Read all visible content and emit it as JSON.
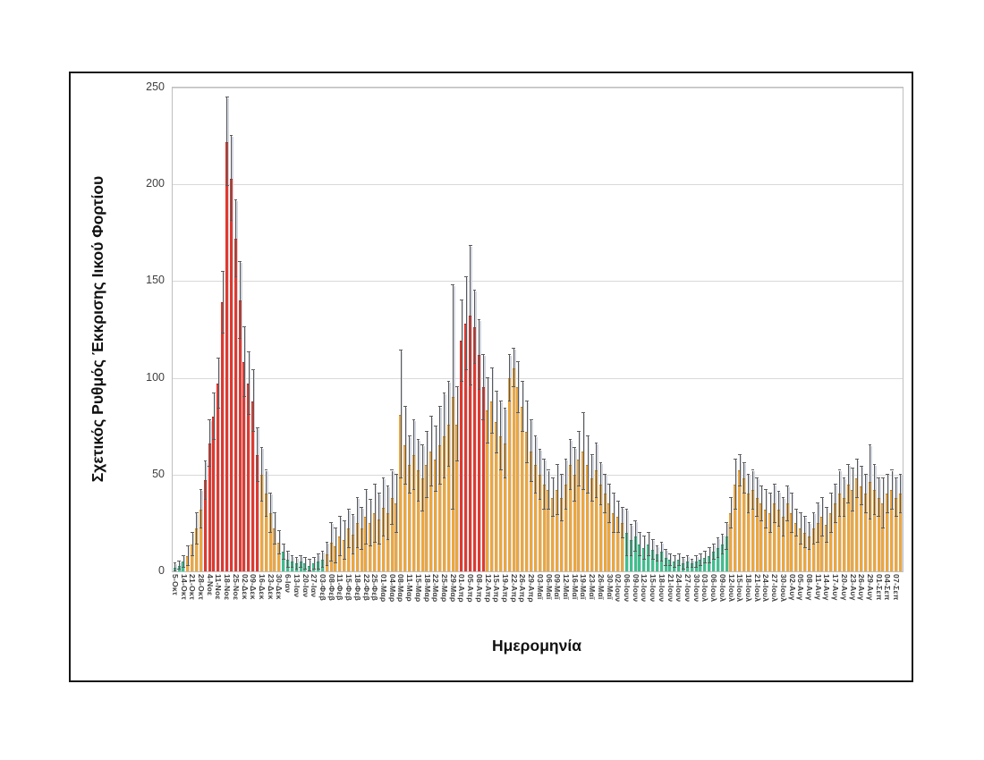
{
  "chart_data": {
    "type": "bar",
    "title": "",
    "xlabel": "Ημερομηνία",
    "ylabel": "Σχετικός Ρυθμός Έκκρισης Ιικού Φορτίου",
    "ylim": [
      0,
      250
    ],
    "yticks": [
      0,
      50,
      100,
      150,
      200,
      250
    ],
    "grid": "horizontal",
    "legend": "none",
    "bar_palette": {
      "g": "#3fbf8c",
      "o": "#eda63c",
      "r": "#e0392f"
    },
    "bar_border_palette": {
      "g": "#2d9c6e",
      "o": "#c2851d",
      "r": "#aa241d"
    },
    "error_bar_color": "#595959",
    "x_tick_labels": [
      "5-Οκτ",
      "14-Οκτ",
      "21-Οκτ",
      "28-Οκτ",
      "4-Νοε",
      "11-Νοε",
      "18-Νοε",
      "25-Νοε",
      "02-Δεκ",
      "09-Δεκ",
      "16-Δεκ",
      "23-Δεκ",
      "30-Δεκ",
      "6-Ιαν",
      "13-Ιαν",
      "20-Ιαν",
      "27-Ιαν",
      "03-Φεβ",
      "08-Φεβ",
      "11-Φεβ",
      "15-Φεβ",
      "18-Φεβ",
      "22-Φεβ",
      "25-Φεβ",
      "01-Μαρ",
      "04-Μαρ",
      "08-Μαρ",
      "11-Μαρ",
      "15-Μαρ",
      "18-Μαρ",
      "22-Μαρ",
      "25-Μαρ",
      "29-Μαρ",
      "01-Απρ",
      "05-Απρ",
      "08-Απρ",
      "12-Απρ",
      "15-Απρ",
      "19-Απρ",
      "22-Απρ",
      "26-Απρ",
      "29-Απρ",
      "03-Μαϊ",
      "06-Μαϊ",
      "09-Μαϊ",
      "12-Μαϊ",
      "16-Μαϊ",
      "19-Μαϊ",
      "23-Μαϊ",
      "26-Μαϊ",
      "30-Μαϊ",
      "02-Ιουν",
      "06-Ιουν",
      "09-Ιουν",
      "12-Ιουν",
      "15-Ιουν",
      "18-Ιουν",
      "21-Ιουν",
      "24-Ιουν",
      "27-Ιουν",
      "30-Ιουν",
      "03-Ιουλ",
      "06-Ιουλ",
      "09-Ιουλ",
      "12-Ιουλ",
      "15-Ιουλ",
      "18-Ιουλ",
      "21-Ιουλ",
      "24-Ιουλ",
      "27-Ιουλ",
      "30-Ιουλ",
      "02-Αυγ",
      "05-Αυγ",
      "08-Αυγ",
      "11-Αυγ",
      "14-Αυγ",
      "17-Αυγ",
      "20-Αυγ",
      "23-Αυγ",
      "26-Αυγ",
      "29-Αυγ",
      "01-Σεπ",
      "04-Σεπ",
      "07-Σεπ"
    ],
    "bars_per_label": 2,
    "bars": [
      [
        2,
        4,
        "g"
      ],
      [
        3,
        5,
        "g"
      ],
      [
        5,
        8,
        "g"
      ],
      [
        8,
        13,
        "o"
      ],
      [
        14,
        20,
        "o"
      ],
      [
        22,
        30,
        "o"
      ],
      [
        32,
        42,
        "o"
      ],
      [
        47,
        57,
        "r"
      ],
      [
        66,
        78,
        "r"
      ],
      [
        80,
        92,
        "r"
      ],
      [
        97,
        110,
        "r"
      ],
      [
        139,
        155,
        "r"
      ],
      [
        222,
        245,
        "r"
      ],
      [
        203,
        225,
        "r"
      ],
      [
        172,
        192,
        "r"
      ],
      [
        140,
        160,
        "r"
      ],
      [
        108,
        126,
        "r"
      ],
      [
        97,
        113,
        "r"
      ],
      [
        88,
        104,
        "r"
      ],
      [
        60,
        74,
        "r"
      ],
      [
        50,
        64,
        "o"
      ],
      [
        40,
        52,
        "o"
      ],
      [
        30,
        40,
        "o"
      ],
      [
        22,
        30,
        "o"
      ],
      [
        15,
        21,
        "o"
      ],
      [
        10,
        14,
        "g"
      ],
      [
        6,
        10,
        "g"
      ],
      [
        5,
        8,
        "g"
      ],
      [
        4,
        7,
        "g"
      ],
      [
        5,
        8,
        "g"
      ],
      [
        4,
        7,
        "g"
      ],
      [
        3,
        6,
        "g"
      ],
      [
        4,
        7,
        "g"
      ],
      [
        5,
        9,
        "g"
      ],
      [
        6,
        10,
        "g"
      ],
      [
        9,
        15,
        "o"
      ],
      [
        15,
        25,
        "o"
      ],
      [
        13,
        22,
        "o"
      ],
      [
        18,
        28,
        "o"
      ],
      [
        16,
        26,
        "o"
      ],
      [
        22,
        32,
        "o"
      ],
      [
        19,
        29,
        "o"
      ],
      [
        25,
        38,
        "o"
      ],
      [
        22,
        33,
        "o"
      ],
      [
        28,
        42,
        "o"
      ],
      [
        25,
        37,
        "o"
      ],
      [
        30,
        45,
        "o"
      ],
      [
        27,
        40,
        "o"
      ],
      [
        33,
        48,
        "o"
      ],
      [
        30,
        44,
        "o"
      ],
      [
        38,
        52,
        "o"
      ],
      [
        35,
        50,
        "o"
      ],
      [
        81,
        114,
        "o"
      ],
      [
        65,
        85,
        "o"
      ],
      [
        55,
        70,
        "o"
      ],
      [
        60,
        78,
        "o"
      ],
      [
        52,
        68,
        "o"
      ],
      [
        48,
        65,
        "o"
      ],
      [
        55,
        72,
        "o"
      ],
      [
        62,
        80,
        "o"
      ],
      [
        58,
        75,
        "o"
      ],
      [
        65,
        85,
        "o"
      ],
      [
        70,
        92,
        "o"
      ],
      [
        76,
        98,
        "o"
      ],
      [
        90,
        148,
        "o"
      ],
      [
        76,
        95,
        "o"
      ],
      [
        119,
        140,
        "r"
      ],
      [
        128,
        152,
        "r"
      ],
      [
        132,
        168,
        "r"
      ],
      [
        126,
        145,
        "r"
      ],
      [
        112,
        130,
        "r"
      ],
      [
        95,
        112,
        "r"
      ],
      [
        83,
        100,
        "o"
      ],
      [
        88,
        105,
        "o"
      ],
      [
        77,
        93,
        "o"
      ],
      [
        70,
        88,
        "o"
      ],
      [
        66,
        84,
        "o"
      ],
      [
        100,
        112,
        "o"
      ],
      [
        105,
        115,
        "o"
      ],
      [
        95,
        108,
        "o"
      ],
      [
        85,
        98,
        "o"
      ],
      [
        72,
        88,
        "o"
      ],
      [
        62,
        78,
        "o"
      ],
      [
        55,
        70,
        "o"
      ],
      [
        50,
        63,
        "o"
      ],
      [
        45,
        58,
        "o"
      ],
      [
        42,
        52,
        "o"
      ],
      [
        38,
        48,
        "o"
      ],
      [
        42,
        55,
        "o"
      ],
      [
        38,
        50,
        "o"
      ],
      [
        45,
        58,
        "o"
      ],
      [
        55,
        68,
        "o"
      ],
      [
        50,
        64,
        "o"
      ],
      [
        58,
        72,
        "o"
      ],
      [
        62,
        82,
        "o"
      ],
      [
        55,
        70,
        "o"
      ],
      [
        48,
        60,
        "o"
      ],
      [
        52,
        66,
        "o"
      ],
      [
        45,
        56,
        "o"
      ],
      [
        40,
        50,
        "o"
      ],
      [
        35,
        45,
        "o"
      ],
      [
        30,
        40,
        "o"
      ],
      [
        28,
        36,
        "o"
      ],
      [
        25,
        33,
        "o"
      ],
      [
        20,
        32,
        "g"
      ],
      [
        16,
        24,
        "g"
      ],
      [
        18,
        26,
        "g"
      ],
      [
        14,
        20,
        "g"
      ],
      [
        12,
        18,
        "g"
      ],
      [
        14,
        20,
        "g"
      ],
      [
        11,
        16,
        "g"
      ],
      [
        9,
        13,
        "g"
      ],
      [
        10,
        15,
        "g"
      ],
      [
        7,
        11,
        "g"
      ],
      [
        6,
        9,
        "g"
      ],
      [
        5,
        8,
        "g"
      ],
      [
        6,
        9,
        "g"
      ],
      [
        4,
        7,
        "g"
      ],
      [
        5,
        8,
        "g"
      ],
      [
        4,
        6,
        "g"
      ],
      [
        5,
        8,
        "g"
      ],
      [
        6,
        9,
        "g"
      ],
      [
        7,
        10,
        "g"
      ],
      [
        8,
        12,
        "g"
      ],
      [
        10,
        14,
        "g"
      ],
      [
        12,
        17,
        "g"
      ],
      [
        14,
        19,
        "g"
      ],
      [
        18,
        25,
        "g"
      ],
      [
        30,
        38,
        "o"
      ],
      [
        45,
        58,
        "o"
      ],
      [
        52,
        60,
        "o"
      ],
      [
        48,
        56,
        "o"
      ],
      [
        40,
        50,
        "o"
      ],
      [
        42,
        52,
        "o"
      ],
      [
        38,
        48,
        "o"
      ],
      [
        35,
        44,
        "o"
      ],
      [
        32,
        42,
        "o"
      ],
      [
        30,
        40,
        "o"
      ],
      [
        35,
        45,
        "o"
      ],
      [
        32,
        41,
        "o"
      ],
      [
        28,
        38,
        "o"
      ],
      [
        35,
        44,
        "o"
      ],
      [
        30,
        40,
        "o"
      ],
      [
        25,
        32,
        "o"
      ],
      [
        22,
        30,
        "o"
      ],
      [
        20,
        28,
        "o"
      ],
      [
        18,
        25,
        "o"
      ],
      [
        22,
        30,
        "o"
      ],
      [
        25,
        35,
        "o"
      ],
      [
        28,
        38,
        "o"
      ],
      [
        24,
        33,
        "o"
      ],
      [
        30,
        40,
        "o"
      ],
      [
        35,
        45,
        "o"
      ],
      [
        40,
        52,
        "o"
      ],
      [
        38,
        48,
        "o"
      ],
      [
        45,
        55,
        "o"
      ],
      [
        42,
        53,
        "o"
      ],
      [
        48,
        58,
        "o"
      ],
      [
        44,
        54,
        "o"
      ],
      [
        40,
        50,
        "o"
      ],
      [
        46,
        65,
        "o"
      ],
      [
        42,
        55,
        "o"
      ],
      [
        38,
        48,
        "o"
      ],
      [
        35,
        48,
        "o"
      ],
      [
        40,
        50,
        "o"
      ],
      [
        42,
        52,
        "o"
      ],
      [
        38,
        48,
        "o"
      ],
      [
        40,
        50,
        "o"
      ]
    ]
  }
}
